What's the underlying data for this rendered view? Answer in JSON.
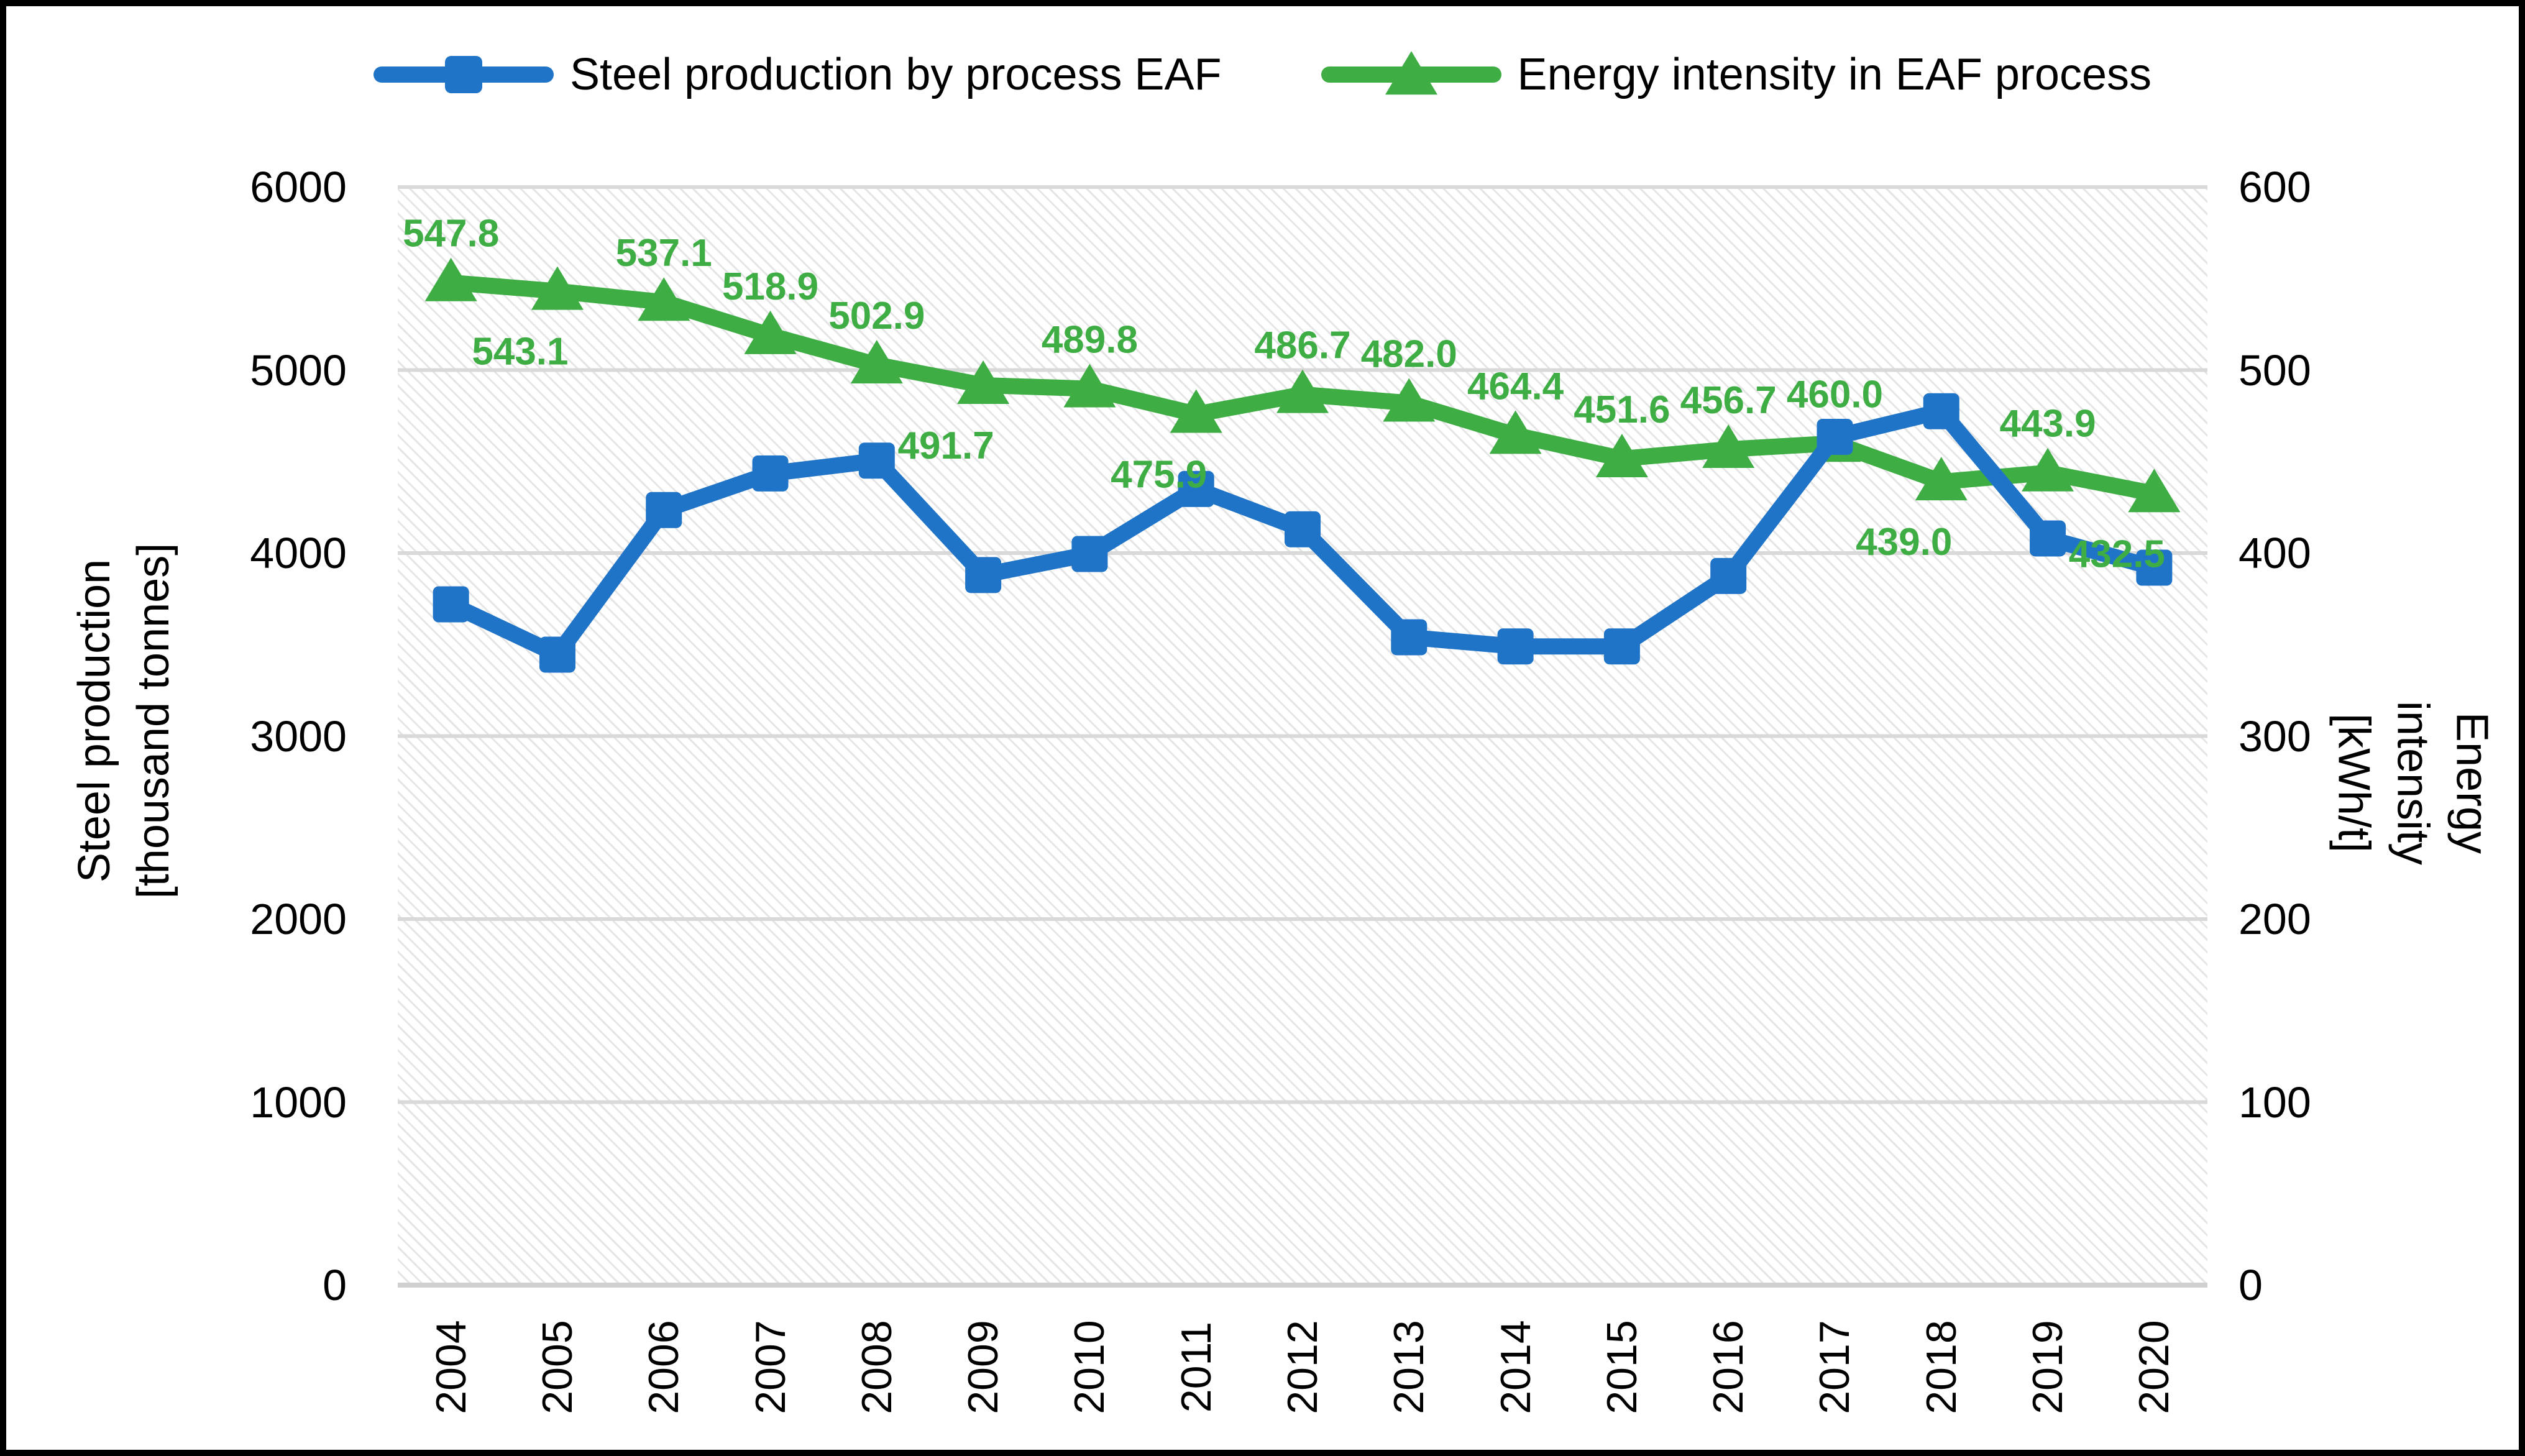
{
  "colors": {
    "steel_blue": "#2074C8",
    "energy_green": "#3EAD44",
    "gridline": "#D9D9D9",
    "axis_zero_line": "#D0D0D0",
    "text": "#000000",
    "frame": "#000000",
    "plot_hatch": "#E2E2E2"
  },
  "legend": {
    "items": [
      {
        "label": "Steel production by process EAF",
        "marker": "square-on-line",
        "color": "#2074C8"
      },
      {
        "label": "Energy intensity in EAF process",
        "marker": "triangle-on-line",
        "color": "#3EAD44"
      }
    ]
  },
  "chart_data": {
    "type": "line",
    "title": "",
    "categories": [
      "2004",
      "2005",
      "2006",
      "2007",
      "2008",
      "2009",
      "2010",
      "2011",
      "2012",
      "2013",
      "2014",
      "2015",
      "2016",
      "2017",
      "2018",
      "2019",
      "2020"
    ],
    "series": [
      {
        "name": "Steel production by process EAF",
        "axis": "left",
        "color": "#2074C8",
        "marker": "square",
        "values": [
          3720,
          3445,
          4235,
          4435,
          4505,
          3880,
          3995,
          4350,
          4130,
          3540,
          3490,
          3490,
          3875,
          4635,
          4775,
          4080,
          3920
        ]
      },
      {
        "name": "Energy intensity in EAF process",
        "axis": "right",
        "color": "#3EAD44",
        "marker": "triangle",
        "values": [
          547.8,
          543.1,
          537.1,
          518.9,
          502.9,
          491.7,
          489.8,
          475.9,
          486.7,
          482.0,
          464.4,
          451.6,
          456.7,
          460.0,
          439.0,
          443.9,
          432.5
        ],
        "data_labels": [
          "547.8",
          "543.1",
          "537.1",
          "518.9",
          "502.9",
          "491.7",
          "489.8",
          "475.9",
          "486.7",
          "482.0",
          "464.4",
          "451.6",
          "456.7",
          "460.0",
          "439.0",
          "443.9",
          "432.5"
        ],
        "label_positions": [
          "above",
          "below",
          "above",
          "above",
          "above",
          "below",
          "above",
          "below",
          "above",
          "above",
          "above",
          "above",
          "above",
          "above",
          "below",
          "above",
          "below"
        ]
      }
    ],
    "left_axis": {
      "title": "Steel production [thousand tonnes]",
      "title_lines": [
        "Steel production",
        "[thousand tonnes]"
      ],
      "min": 0,
      "max": 6000,
      "step": 1000,
      "tick_labels": [
        "0",
        "1000",
        "2000",
        "3000",
        "4000",
        "5000",
        "6000"
      ]
    },
    "right_axis": {
      "title": "Energy intensity [kWh/t]",
      "title_lines": [
        "Energy",
        "intensity",
        "[kWh/t]"
      ],
      "min": 0,
      "max": 600,
      "step": 100,
      "tick_labels": [
        "0",
        "100",
        "200",
        "300",
        "400",
        "500",
        "600"
      ]
    },
    "legend_position": "top",
    "grid": true,
    "plot_background": "diagonal-hatch"
  }
}
